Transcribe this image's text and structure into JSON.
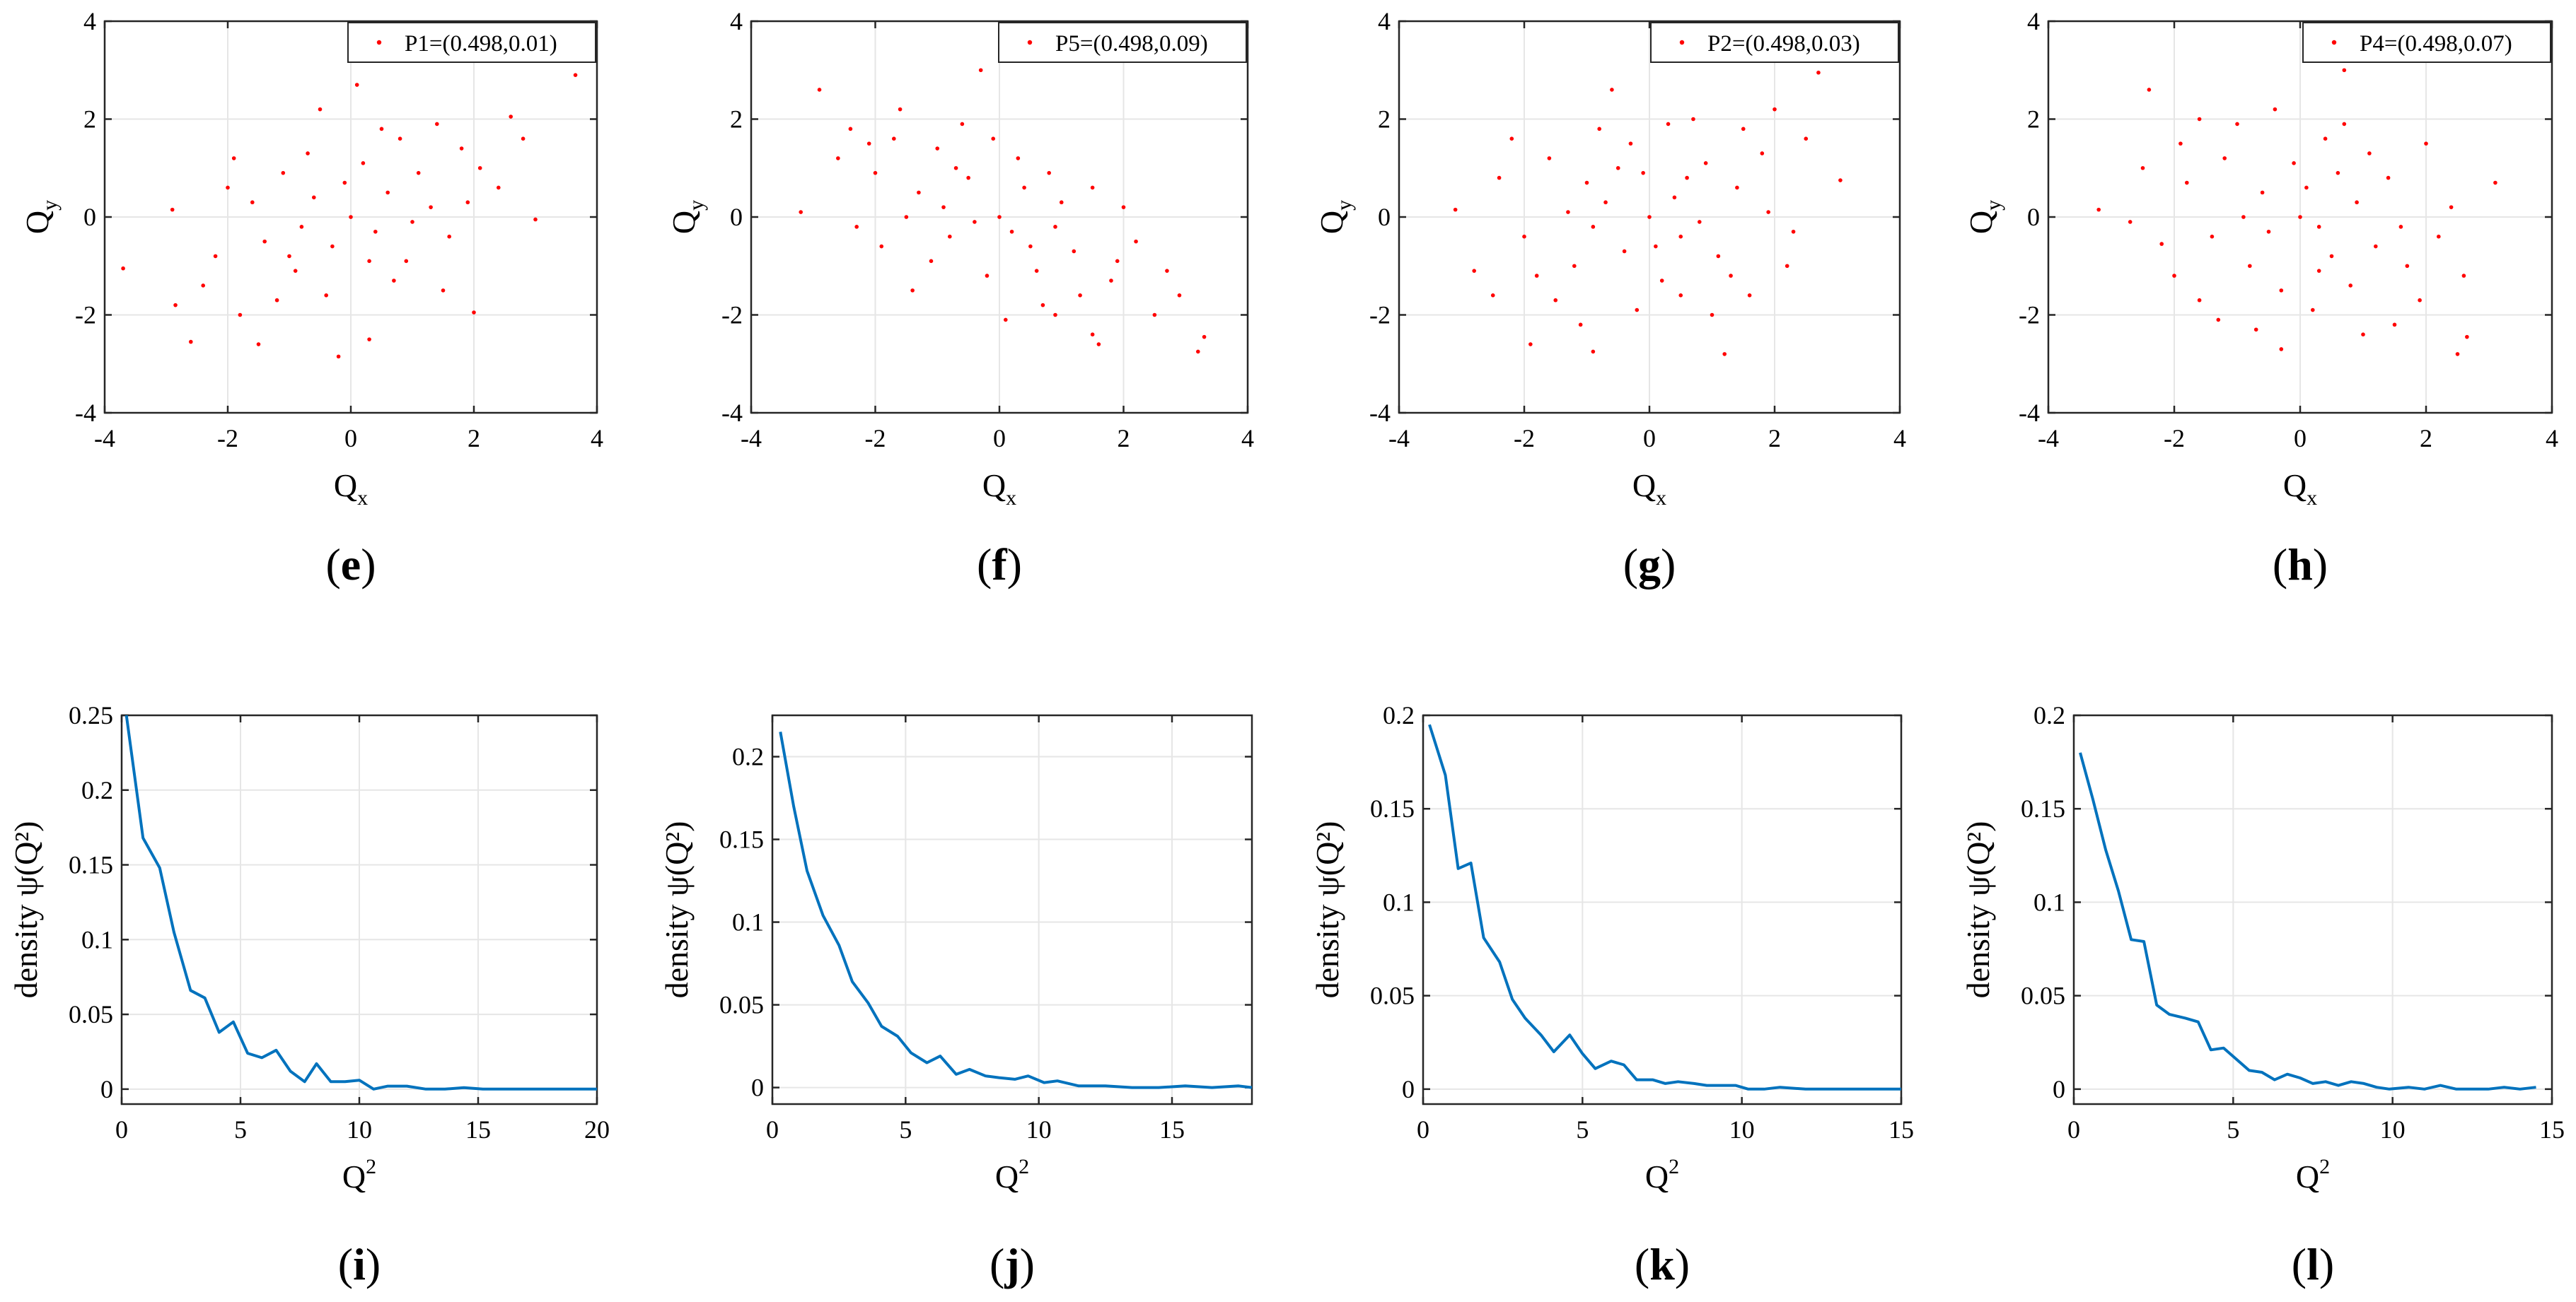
{
  "figure": {
    "point_color": "#ff0000",
    "line_color": "#0072bd",
    "grid_color": "#e6e6e6"
  },
  "chart_data": [
    {
      "id": "e",
      "type": "scatter",
      "panel_label": "e",
      "legend": "P1=(0.498,0.01)",
      "xlabel": "Q",
      "xlabel_sub": "x",
      "ylabel": "Q",
      "ylabel_sub": "y",
      "xlim": [
        -4,
        4
      ],
      "ylim": [
        -4,
        4
      ],
      "xticks": [
        -4,
        -2,
        0,
        2,
        4
      ],
      "yticks": [
        -4,
        -2,
        0,
        2,
        4
      ],
      "points": [
        [
          3.65,
          2.9
        ],
        [
          -3.7,
          -1.05
        ],
        [
          0.1,
          2.7
        ],
        [
          -2.6,
          -2.55
        ],
        [
          -2.9,
          0.15
        ],
        [
          -2.85,
          -1.8
        ],
        [
          3.0,
          -0.05
        ],
        [
          2.0,
          -1.95
        ],
        [
          -0.2,
          -2.85
        ],
        [
          2.6,
          2.05
        ],
        [
          -1.5,
          -2.6
        ],
        [
          0.3,
          -2.5
        ],
        [
          -0.5,
          2.2
        ],
        [
          1.5,
          -1.5
        ],
        [
          -1.9,
          1.2
        ],
        [
          2.4,
          0.6
        ],
        [
          -1.2,
          -1.7
        ],
        [
          0.8,
          1.6
        ],
        [
          -0.6,
          0.4
        ],
        [
          0.4,
          -0.3
        ],
        [
          1.1,
          0.9
        ],
        [
          -2.2,
          -0.8
        ],
        [
          1.8,
          1.4
        ],
        [
          -0.9,
          -1.1
        ],
        [
          0.0,
          0.0
        ],
        [
          0.6,
          0.5
        ],
        [
          -0.3,
          -0.6
        ],
        [
          1.3,
          0.2
        ],
        [
          -1.6,
          0.3
        ],
        [
          0.2,
          1.1
        ],
        [
          -0.8,
          -0.2
        ],
        [
          2.1,
          1.0
        ],
        [
          -1.1,
          0.9
        ],
        [
          0.9,
          -0.9
        ],
        [
          -2.4,
          -1.4
        ],
        [
          1.6,
          -0.4
        ],
        [
          -0.4,
          -1.6
        ],
        [
          0.5,
          1.8
        ],
        [
          -1.8,
          -2.0
        ],
        [
          2.8,
          1.6
        ],
        [
          -0.1,
          0.7
        ],
        [
          1.0,
          -0.1
        ],
        [
          -1.4,
          -0.5
        ],
        [
          0.7,
          -1.3
        ],
        [
          -2.0,
          0.6
        ],
        [
          1.9,
          0.3
        ],
        [
          -0.7,
          1.3
        ],
        [
          0.3,
          -0.9
        ],
        [
          1.4,
          1.9
        ],
        [
          -1.0,
          -0.8
        ]
      ]
    },
    {
      "id": "f",
      "type": "scatter",
      "panel_label": "f",
      "legend": "P5=(0.498,0.09)",
      "xlabel": "Q",
      "xlabel_sub": "x",
      "ylabel": "Q",
      "ylabel_sub": "y",
      "xlim": [
        -4,
        4
      ],
      "ylim": [
        -4,
        4
      ],
      "xticks": [
        -4,
        -2,
        0,
        2,
        4
      ],
      "yticks": [
        -4,
        -2,
        0,
        2,
        4
      ],
      "points": [
        [
          -2.9,
          2.6
        ],
        [
          -0.3,
          3.0
        ],
        [
          3.3,
          -2.45
        ],
        [
          3.2,
          -2.75
        ],
        [
          -3.2,
          0.1
        ],
        [
          2.9,
          -1.6
        ],
        [
          -2.4,
          1.8
        ],
        [
          1.5,
          -2.4
        ],
        [
          -1.6,
          2.2
        ],
        [
          0.9,
          -2.0
        ],
        [
          -1.0,
          1.4
        ],
        [
          0.6,
          -1.1
        ],
        [
          -0.5,
          0.8
        ],
        [
          0.2,
          -0.3
        ],
        [
          1.2,
          -0.7
        ],
        [
          -1.3,
          0.5
        ],
        [
          0.0,
          0.0
        ],
        [
          -0.8,
          -0.4
        ],
        [
          1.8,
          -1.3
        ],
        [
          -2.0,
          0.9
        ],
        [
          0.4,
          0.6
        ],
        [
          -0.2,
          -1.2
        ],
        [
          2.2,
          -0.5
        ],
        [
          -1.7,
          1.6
        ],
        [
          1.0,
          0.3
        ],
        [
          -1.1,
          -0.9
        ],
        [
          0.7,
          -1.8
        ],
        [
          -0.6,
          1.9
        ],
        [
          2.5,
          -2.0
        ],
        [
          -2.3,
          -0.2
        ],
        [
          0.3,
          1.2
        ],
        [
          1.5,
          0.6
        ],
        [
          -1.4,
          -1.5
        ],
        [
          0.9,
          -0.2
        ],
        [
          -0.4,
          -0.1
        ],
        [
          1.9,
          -0.9
        ],
        [
          -2.6,
          1.2
        ],
        [
          0.1,
          -2.1
        ],
        [
          -0.9,
          0.2
        ],
        [
          2.7,
          -1.1
        ],
        [
          -1.9,
          -0.6
        ],
        [
          0.5,
          -0.6
        ],
        [
          1.3,
          -1.6
        ],
        [
          -0.7,
          1.0
        ],
        [
          0.8,
          0.9
        ],
        [
          -1.5,
          0.0
        ],
        [
          2.0,
          0.2
        ],
        [
          -0.1,
          1.6
        ],
        [
          1.6,
          -2.6
        ],
        [
          -2.1,
          1.5
        ]
      ]
    },
    {
      "id": "g",
      "type": "scatter",
      "panel_label": "g",
      "legend": "P2=(0.498,0.03)",
      "xlabel": "Q",
      "xlabel_sub": "x",
      "ylabel": "Q",
      "ylabel_sub": "y",
      "xlim": [
        -4,
        4
      ],
      "ylim": [
        -4,
        4
      ],
      "xticks": [
        -4,
        -2,
        0,
        2,
        4
      ],
      "yticks": [
        -4,
        -2,
        0,
        2,
        4
      ],
      "points": [
        [
          2.7,
          2.95
        ],
        [
          -3.1,
          0.15
        ],
        [
          -2.8,
          -1.1
        ],
        [
          3.05,
          0.75
        ],
        [
          -0.6,
          2.6
        ],
        [
          -0.9,
          -2.75
        ],
        [
          1.2,
          -2.8
        ],
        [
          -1.9,
          -2.6
        ],
        [
          2.0,
          2.2
        ],
        [
          -2.4,
          0.8
        ],
        [
          1.6,
          -1.6
        ],
        [
          -0.3,
          1.5
        ],
        [
          0.5,
          -0.4
        ],
        [
          -1.2,
          -1.0
        ],
        [
          0.9,
          1.1
        ],
        [
          -0.7,
          0.3
        ],
        [
          0.2,
          -1.3
        ],
        [
          1.4,
          0.6
        ],
        [
          -1.6,
          1.2
        ],
        [
          0.0,
          0.0
        ],
        [
          0.6,
          0.8
        ],
        [
          -0.4,
          -0.7
        ],
        [
          1.1,
          -0.8
        ],
        [
          -1.0,
          0.7
        ],
        [
          2.3,
          -0.3
        ],
        [
          -2.0,
          -0.4
        ],
        [
          0.3,
          1.9
        ],
        [
          -0.2,
          -1.9
        ],
        [
          1.8,
          1.3
        ],
        [
          -1.5,
          -1.7
        ],
        [
          0.8,
          -0.1
        ],
        [
          -0.9,
          -0.2
        ],
        [
          2.5,
          1.6
        ],
        [
          -2.2,
          1.6
        ],
        [
          0.4,
          0.4
        ],
        [
          -0.5,
          1.0
        ],
        [
          1.3,
          -1.2
        ],
        [
          -1.3,
          0.1
        ],
        [
          0.1,
          -0.6
        ],
        [
          1.9,
          0.1
        ],
        [
          -1.8,
          -1.2
        ],
        [
          0.7,
          2.0
        ],
        [
          -0.1,
          0.9
        ],
        [
          1.0,
          -2.0
        ],
        [
          -2.5,
          -1.6
        ],
        [
          0.5,
          -1.6
        ],
        [
          -0.8,
          1.8
        ],
        [
          1.5,
          1.8
        ],
        [
          -1.1,
          -2.2
        ],
        [
          2.2,
          -1.0
        ]
      ]
    },
    {
      "id": "h",
      "type": "scatter",
      "panel_label": "h",
      "legend": "P4=(0.498,0.07)",
      "xlabel": "Q",
      "xlabel_sub": "x",
      "ylabel": "Q",
      "ylabel_sub": "y",
      "xlim": [
        -4,
        4
      ],
      "ylim": [
        -4,
        4
      ],
      "xticks": [
        -4,
        -2,
        0,
        2,
        4
      ],
      "yticks": [
        -4,
        -2,
        0,
        2,
        4
      ],
      "points": [
        [
          0.7,
          3.0
        ],
        [
          -2.4,
          2.6
        ],
        [
          3.1,
          0.7
        ],
        [
          -3.2,
          0.15
        ],
        [
          2.65,
          -2.45
        ],
        [
          2.5,
          -2.8
        ],
        [
          -2.2,
          -0.55
        ],
        [
          -1.6,
          2.0
        ],
        [
          1.5,
          -2.2
        ],
        [
          -0.3,
          -2.7
        ],
        [
          2.0,
          1.5
        ],
        [
          -1.2,
          1.2
        ],
        [
          0.8,
          -1.4
        ],
        [
          -0.6,
          0.5
        ],
        [
          0.3,
          -0.2
        ],
        [
          1.2,
          -0.6
        ],
        [
          -1.4,
          -0.4
        ],
        [
          0.0,
          0.0
        ],
        [
          0.6,
          0.9
        ],
        [
          -0.8,
          -1.0
        ],
        [
          1.7,
          -1.0
        ],
        [
          -1.8,
          0.7
        ],
        [
          0.4,
          1.6
        ],
        [
          -0.3,
          -1.5
        ],
        [
          2.2,
          -0.4
        ],
        [
          -2.0,
          -1.2
        ],
        [
          0.9,
          0.3
        ],
        [
          -1.0,
          1.9
        ],
        [
          1.4,
          0.8
        ],
        [
          -0.5,
          -0.3
        ],
        [
          0.2,
          -1.9
        ],
        [
          -1.6,
          -1.7
        ],
        [
          1.9,
          -1.7
        ],
        [
          -0.1,
          1.1
        ],
        [
          1.0,
          -2.4
        ],
        [
          -2.5,
          1.0
        ],
        [
          0.5,
          -0.8
        ],
        [
          -0.9,
          0.0
        ],
        [
          2.4,
          0.2
        ],
        [
          -1.3,
          -2.1
        ],
        [
          0.7,
          1.9
        ],
        [
          -0.4,
          2.2
        ],
        [
          1.6,
          -0.2
        ],
        [
          -1.9,
          1.5
        ],
        [
          0.1,
          0.6
        ],
        [
          1.1,
          1.3
        ],
        [
          -0.7,
          -2.3
        ],
        [
          2.6,
          -1.2
        ],
        [
          -2.7,
          -0.1
        ],
        [
          0.3,
          -1.1
        ]
      ]
    },
    {
      "id": "i",
      "type": "line",
      "panel_label": "i",
      "ylabel_text": "density ψ(Q²)",
      "xlabel": "Q",
      "xlabel_sup": "2",
      "xlim": [
        0,
        20
      ],
      "ylim": [
        -0.01,
        0.25
      ],
      "xticks": [
        0,
        5,
        10,
        15,
        20
      ],
      "yticks": [
        0,
        0.05,
        0.1,
        0.15,
        0.2,
        0.25
      ],
      "ytick_labels": [
        "0",
        "0.05",
        "0.1",
        "0.15",
        "0.2",
        "0.25"
      ],
      "x": [
        0.2,
        0.9,
        1.6,
        2.2,
        2.9,
        3.5,
        4.1,
        4.7,
        5.3,
        5.9,
        6.5,
        7.1,
        7.7,
        8.2,
        8.8,
        9.4,
        10.0,
        10.6,
        11.2,
        12.0,
        12.8,
        13.6,
        14.4,
        15.2,
        16.0,
        18.0,
        20.0
      ],
      "y": [
        0.25,
        0.168,
        0.148,
        0.105,
        0.066,
        0.061,
        0.038,
        0.045,
        0.024,
        0.021,
        0.026,
        0.012,
        0.005,
        0.017,
        0.005,
        0.005,
        0.006,
        0.0,
        0.002,
        0.002,
        0.0,
        0.0,
        0.001,
        0.0,
        0.0,
        0.0,
        0.0
      ]
    },
    {
      "id": "j",
      "type": "line",
      "panel_label": "j",
      "ylabel_text": "density ψ(Q²)",
      "xlabel": "Q",
      "xlabel_sup": "2",
      "xlim": [
        0,
        18
      ],
      "ylim": [
        -0.01,
        0.225
      ],
      "xticks": [
        0,
        5,
        10,
        15
      ],
      "yticks": [
        0,
        0.05,
        0.1,
        0.15,
        0.2
      ],
      "ytick_labels": [
        "0",
        "0.05",
        "0.1",
        "0.15",
        "0.2"
      ],
      "x": [
        0.3,
        0.8,
        1.3,
        1.9,
        2.5,
        3.0,
        3.6,
        4.1,
        4.7,
        5.2,
        5.8,
        6.3,
        6.9,
        7.4,
        8.0,
        8.5,
        9.1,
        9.6,
        10.2,
        10.7,
        11.5,
        12.5,
        13.5,
        14.5,
        15.5,
        16.5,
        17.5,
        18.0
      ],
      "y": [
        0.215,
        0.17,
        0.131,
        0.104,
        0.086,
        0.064,
        0.051,
        0.037,
        0.031,
        0.021,
        0.015,
        0.019,
        0.008,
        0.011,
        0.007,
        0.006,
        0.005,
        0.007,
        0.003,
        0.004,
        0.001,
        0.001,
        0.0,
        0.0,
        0.001,
        0.0,
        0.001,
        0.0
      ]
    },
    {
      "id": "k",
      "type": "line",
      "panel_label": "k",
      "ylabel_text": "density ψ(Q²)",
      "xlabel": "Q",
      "xlabel_sup": "2",
      "xlim": [
        0,
        15
      ],
      "ylim": [
        -0.008,
        0.2
      ],
      "xticks": [
        0,
        5,
        10,
        15
      ],
      "yticks": [
        0,
        0.05,
        0.1,
        0.15,
        0.2
      ],
      "ytick_labels": [
        "0",
        "0.05",
        "0.1",
        "0.15",
        "0.2"
      ],
      "x": [
        0.2,
        0.7,
        1.1,
        1.5,
        1.9,
        2.4,
        2.8,
        3.2,
        3.7,
        4.1,
        4.6,
        5.0,
        5.4,
        5.9,
        6.3,
        6.7,
        7.2,
        7.6,
        8.0,
        8.5,
        8.9,
        9.3,
        9.8,
        10.2,
        10.7,
        11.2,
        12.0,
        13.0,
        14.0,
        15.0
      ],
      "y": [
        0.195,
        0.168,
        0.118,
        0.121,
        0.081,
        0.068,
        0.048,
        0.038,
        0.029,
        0.02,
        0.029,
        0.019,
        0.011,
        0.015,
        0.013,
        0.005,
        0.005,
        0.003,
        0.004,
        0.003,
        0.002,
        0.002,
        0.002,
        0.0,
        0.0,
        0.001,
        0.0,
        0.0,
        0.0,
        0.0
      ]
    },
    {
      "id": "l",
      "type": "line",
      "panel_label": "l",
      "ylabel_text": "density ψ(Q²)",
      "xlabel": "Q",
      "xlabel_sup": "2",
      "xlim": [
        0,
        15
      ],
      "ylim": [
        -0.008,
        0.2
      ],
      "xticks": [
        0,
        5,
        10,
        15
      ],
      "yticks": [
        0,
        0.05,
        0.1,
        0.15,
        0.2
      ],
      "ytick_labels": [
        "0",
        "0.05",
        "0.1",
        "0.15",
        "0.2"
      ],
      "x": [
        0.2,
        0.6,
        1.0,
        1.4,
        1.8,
        2.2,
        2.6,
        3.0,
        3.5,
        3.9,
        4.3,
        4.7,
        5.1,
        5.5,
        5.9,
        6.3,
        6.7,
        7.1,
        7.5,
        7.9,
        8.3,
        8.7,
        9.1,
        9.5,
        9.9,
        10.5,
        11.0,
        11.5,
        12.0,
        12.5,
        13.0,
        13.5,
        14.0,
        14.5
      ],
      "y": [
        0.18,
        0.155,
        0.128,
        0.106,
        0.08,
        0.079,
        0.045,
        0.04,
        0.038,
        0.036,
        0.021,
        0.022,
        0.016,
        0.01,
        0.009,
        0.005,
        0.008,
        0.006,
        0.003,
        0.004,
        0.002,
        0.004,
        0.003,
        0.001,
        0.0,
        0.001,
        0.0,
        0.002,
        0.0,
        0.0,
        0.0,
        0.001,
        0.0,
        0.001
      ]
    }
  ]
}
